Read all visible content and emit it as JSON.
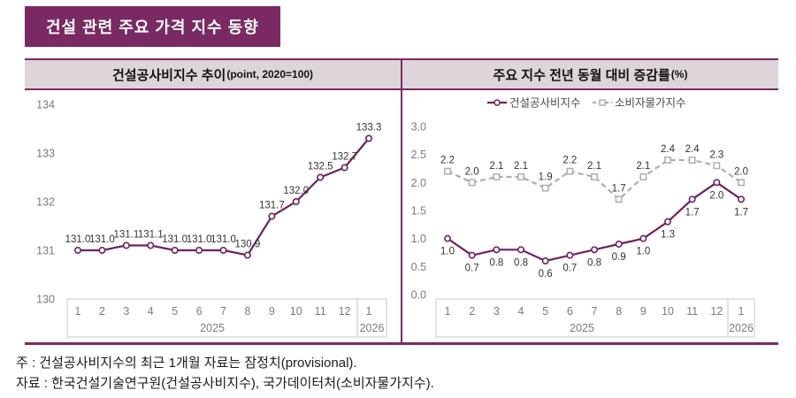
{
  "title": "건설 관련 주요 가격 지수 동향",
  "footer": {
    "note": "주 : 건설공사비지수의 최근 1개월 자료는 잠정치(provisional).",
    "source": "자료 : 한국건설기술연구원(건설공사비지수), 국가데이터처(소비자물가지수)."
  },
  "colors": {
    "accent_purple": "#7a2a62",
    "line_purple": "#6e2160",
    "line_gray": "#b6a9b2",
    "header_band_bg": "#ded5db",
    "axis_box_border": "#c9c9c9",
    "tick_text": "#7b7b7b",
    "label_text": "#333333",
    "legend_text": "#4a4a4a"
  },
  "chart_data": [
    {
      "type": "line",
      "title": "건설공사비지수 추이",
      "unit_note": "(point, 2020=100)",
      "x_months": [
        "1",
        "2",
        "3",
        "4",
        "5",
        "6",
        "7",
        "8",
        "9",
        "10",
        "11",
        "12",
        "1"
      ],
      "x_years": [
        "2025",
        "2026"
      ],
      "ylim": [
        130,
        134
      ],
      "yticks": [
        "134",
        "133",
        "132",
        "131",
        "130"
      ],
      "grid": false,
      "legend": false,
      "series": [
        {
          "name": "건설공사비지수",
          "values": [
            131.0,
            131.0,
            131.1,
            131.1,
            131.0,
            131.0,
            131.0,
            130.9,
            131.7,
            132.0,
            132.5,
            132.7,
            133.3
          ],
          "line_style": "solid",
          "marker": "circle",
          "color": "#6e2160",
          "label_pos": "above"
        }
      ]
    },
    {
      "type": "line",
      "title": "주요 지수 전년 동월 대비 증감률",
      "unit_note": "(%)",
      "x_months": [
        "1",
        "2",
        "3",
        "4",
        "5",
        "6",
        "7",
        "8",
        "9",
        "10",
        "11",
        "12",
        "1"
      ],
      "x_years": [
        "2025",
        "2026"
      ],
      "ylim": [
        0,
        3
      ],
      "yticks": [
        "3.0",
        "2.5",
        "2.0",
        "1.5",
        "1.0",
        "0.5",
        "0.0"
      ],
      "grid": false,
      "legend": true,
      "legend_position": "top",
      "series": [
        {
          "name": "건설공사비지수",
          "values": [
            1.0,
            0.7,
            0.8,
            0.8,
            0.6,
            0.7,
            0.8,
            0.9,
            1.0,
            1.3,
            1.7,
            2.0,
            1.7
          ],
          "line_style": "solid",
          "marker": "circle",
          "color": "#6e2160",
          "label_pos": "below"
        },
        {
          "name": "소비자물가지수",
          "values": [
            2.2,
            2.0,
            2.1,
            2.1,
            1.9,
            2.2,
            2.1,
            1.7,
            2.1,
            2.4,
            2.4,
            2.3,
            2.0
          ],
          "line_style": "dashed",
          "marker": "square",
          "color": "#b6a9b2",
          "label_pos": "above"
        }
      ]
    }
  ]
}
